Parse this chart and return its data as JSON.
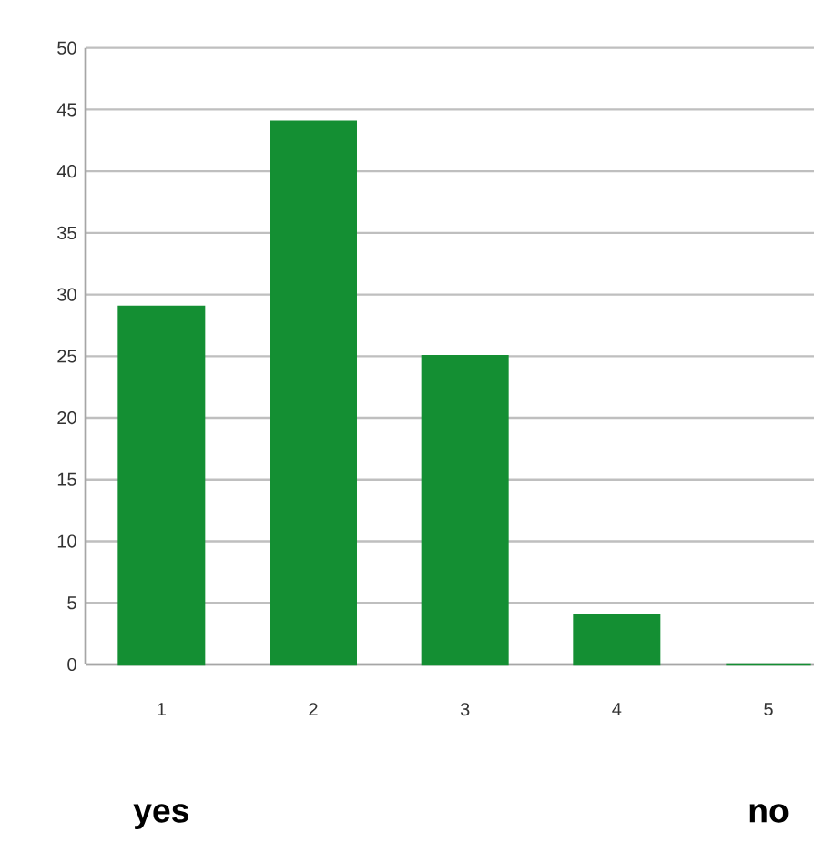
{
  "chart_data": {
    "type": "bar",
    "categories": [
      "1",
      "2",
      "3",
      "4",
      "5"
    ],
    "values": [
      29,
      44,
      25,
      4,
      0
    ],
    "color": "#148f33",
    "ylim": [
      0,
      50
    ],
    "yticks": [
      0,
      5,
      10,
      15,
      20,
      25,
      30,
      35,
      40,
      45,
      50
    ],
    "grid": "y",
    "annotations": [
      "yes",
      "no"
    ]
  }
}
